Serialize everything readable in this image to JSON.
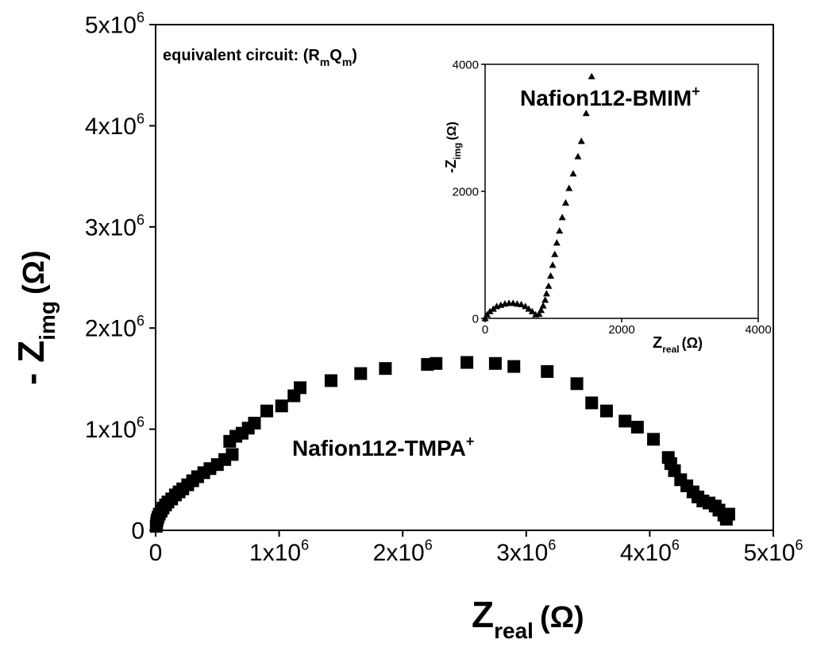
{
  "chart_data": [
    {
      "type": "scatter",
      "role": "main",
      "title": "",
      "xlabel": {
        "base": "Z",
        "sub": "real",
        "unit": "(Ω)"
      },
      "ylabel": {
        "prefix": "- Z",
        "sub": "img",
        "unit": "(Ω)"
      },
      "xlim": [
        0,
        5000000
      ],
      "ylim": [
        0,
        5000000
      ],
      "xticks": [
        {
          "value": 0,
          "base": "0",
          "exp": ""
        },
        {
          "value": 1000000,
          "base": "1x10",
          "exp": "6"
        },
        {
          "value": 2000000,
          "base": "2x10",
          "exp": "6"
        },
        {
          "value": 3000000,
          "base": "3x10",
          "exp": "6"
        },
        {
          "value": 4000000,
          "base": "4x10",
          "exp": "6"
        },
        {
          "value": 5000000,
          "base": "5x10",
          "exp": "6"
        }
      ],
      "yticks": [
        {
          "value": 0,
          "base": "0",
          "exp": ""
        },
        {
          "value": 1000000,
          "base": "1x10",
          "exp": "6"
        },
        {
          "value": 2000000,
          "base": "2x10",
          "exp": "6"
        },
        {
          "value": 3000000,
          "base": "3x10",
          "exp": "6"
        },
        {
          "value": 4000000,
          "base": "4x10",
          "exp": "6"
        },
        {
          "value": 5000000,
          "base": "5x10",
          "exp": "6"
        }
      ],
      "annotations": {
        "circuit": {
          "text": "equivalent circuit: (R",
          "sub1": "m",
          "mid": "Q",
          "sub2": "m",
          "end": ")"
        },
        "series_label": {
          "text": "Nafion112-TMPA",
          "sup": "+"
        }
      },
      "series": [
        {
          "name": "Nafion112-TMPA+",
          "marker": "square",
          "points": [
            [
              5000,
              40000
            ],
            [
              8000,
              70000
            ],
            [
              12000,
              100000
            ],
            [
              20000,
              130000
            ],
            [
              30000,
              160000
            ],
            [
              45000,
              190000
            ],
            [
              60000,
              220000
            ],
            [
              80000,
              250000
            ],
            [
              100000,
              280000
            ],
            [
              130000,
              310000
            ],
            [
              160000,
              350000
            ],
            [
              190000,
              380000
            ],
            [
              220000,
              410000
            ],
            [
              260000,
              450000
            ],
            [
              300000,
              490000
            ],
            [
              340000,
              530000
            ],
            [
              390000,
              570000
            ],
            [
              440000,
              610000
            ],
            [
              500000,
              650000
            ],
            [
              560000,
              700000
            ],
            [
              620000,
              750000
            ],
            [
              600000,
              880000
            ],
            [
              650000,
              930000
            ],
            [
              700000,
              960000
            ],
            [
              750000,
              1010000
            ],
            [
              800000,
              1060000
            ],
            [
              900000,
              1180000
            ],
            [
              1020000,
              1230000
            ],
            [
              1120000,
              1330000
            ],
            [
              1170000,
              1410000
            ],
            [
              1420000,
              1480000
            ],
            [
              1660000,
              1550000
            ],
            [
              1860000,
              1600000
            ],
            [
              2200000,
              1640000
            ],
            [
              2270000,
              1650000
            ],
            [
              2520000,
              1660000
            ],
            [
              2750000,
              1650000
            ],
            [
              2900000,
              1620000
            ],
            [
              3170000,
              1570000
            ],
            [
              3410000,
              1450000
            ],
            [
              3530000,
              1260000
            ],
            [
              3650000,
              1180000
            ],
            [
              3800000,
              1080000
            ],
            [
              3900000,
              1020000
            ],
            [
              4030000,
              900000
            ],
            [
              4150000,
              720000
            ],
            [
              4170000,
              660000
            ],
            [
              4200000,
              590000
            ],
            [
              4250000,
              500000
            ],
            [
              4300000,
              440000
            ],
            [
              4350000,
              380000
            ],
            [
              4390000,
              330000
            ],
            [
              4430000,
              290000
            ],
            [
              4480000,
              270000
            ],
            [
              4530000,
              240000
            ],
            [
              4560000,
              200000
            ],
            [
              4600000,
              150000
            ],
            [
              4620000,
              110000
            ],
            [
              4640000,
              160000
            ]
          ]
        }
      ]
    },
    {
      "type": "scatter",
      "role": "inset",
      "title": "",
      "xlabel": {
        "base": "Z",
        "sub": "real",
        "unit": "(Ω)"
      },
      "ylabel": {
        "prefix": "-Z",
        "sub": "img",
        "unit": "(Ω)"
      },
      "xlim": [
        0,
        4000
      ],
      "ylim": [
        0,
        4000
      ],
      "xticks": [
        {
          "value": 0,
          "label": "0"
        },
        {
          "value": 2000,
          "label": "2000"
        },
        {
          "value": 4000,
          "label": "4000"
        }
      ],
      "yticks": [
        {
          "value": 0,
          "label": "0"
        },
        {
          "value": 2000,
          "label": "2000"
        },
        {
          "value": 4000,
          "label": "4000"
        }
      ],
      "annotations": {
        "series_label": {
          "text": "Nafion112-BMIM",
          "sup": "+"
        }
      },
      "series": [
        {
          "name": "Nafion112-BMIM+",
          "marker": "triangle",
          "points": [
            [
              0,
              0
            ],
            [
              30,
              60
            ],
            [
              70,
              110
            ],
            [
              120,
              150
            ],
            [
              170,
              190
            ],
            [
              230,
              210
            ],
            [
              290,
              230
            ],
            [
              350,
              240
            ],
            [
              410,
              240
            ],
            [
              470,
              230
            ],
            [
              530,
              220
            ],
            [
              590,
              190
            ],
            [
              640,
              150
            ],
            [
              690,
              110
            ],
            [
              740,
              60
            ],
            [
              790,
              70
            ],
            [
              820,
              130
            ],
            [
              850,
              200
            ],
            [
              880,
              290
            ],
            [
              900,
              390
            ],
            [
              930,
              510
            ],
            [
              960,
              670
            ],
            [
              990,
              840
            ],
            [
              1020,
              1010
            ],
            [
              1050,
              1190
            ],
            [
              1090,
              1380
            ],
            [
              1130,
              1590
            ],
            [
              1180,
              1820
            ],
            [
              1230,
              2050
            ],
            [
              1290,
              2280
            ],
            [
              1360,
              2550
            ],
            [
              1410,
              2790
            ],
            [
              1480,
              3230
            ],
            [
              1560,
              3810
            ]
          ]
        }
      ]
    }
  ]
}
